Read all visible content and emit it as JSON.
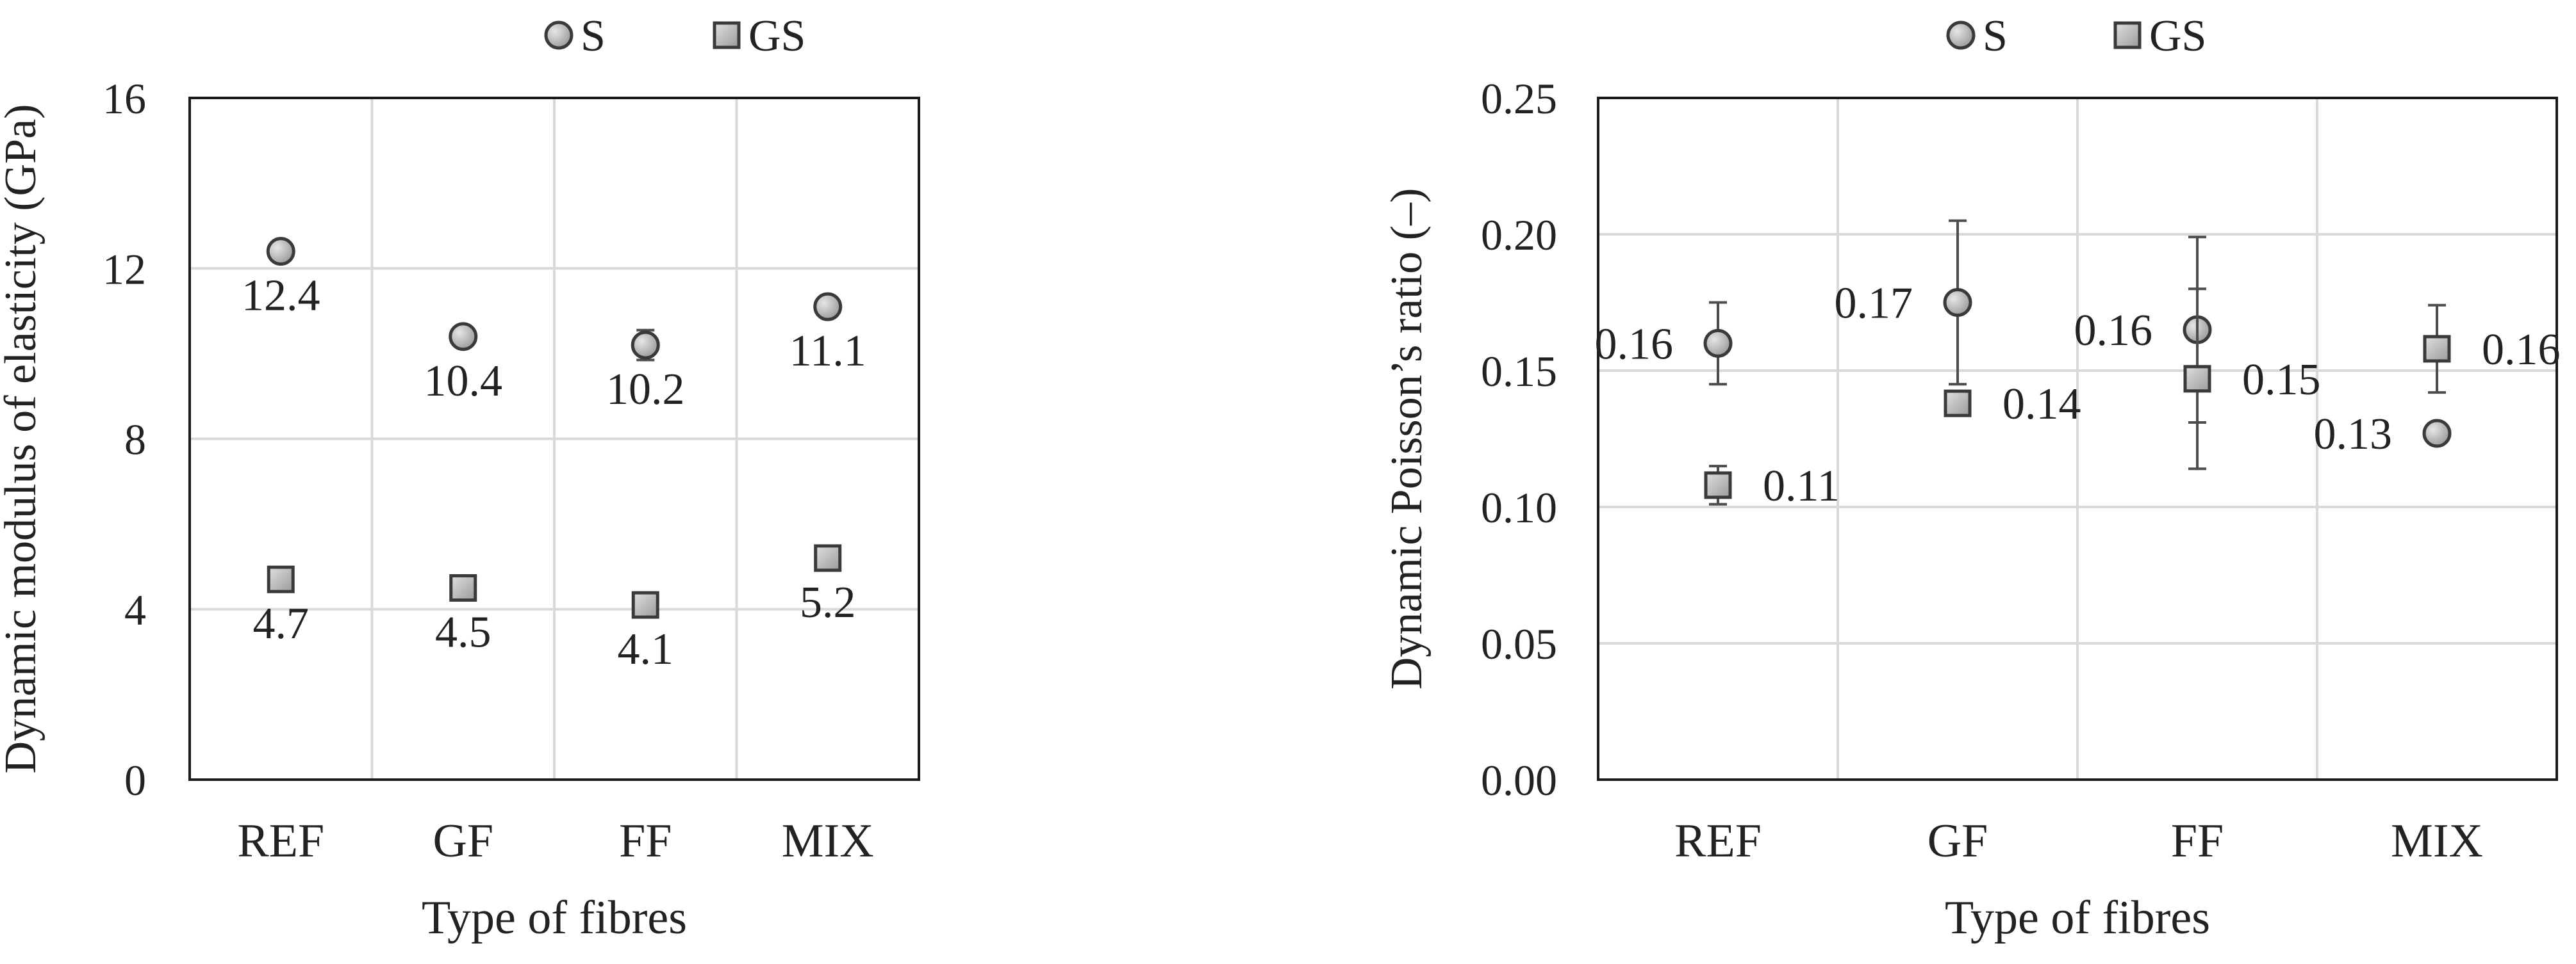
{
  "chart_data": [
    {
      "type": "scatter",
      "title": "",
      "xlabel": "Type of fibres",
      "ylabel": "Dynamic modulus of elasticity (GPa)",
      "categories": [
        "REF",
        "GF",
        "FF",
        "MIX"
      ],
      "ylim": [
        0,
        16
      ],
      "yticks": [
        "0",
        "4",
        "8",
        "12",
        "16"
      ],
      "grid": true,
      "legend": "top-center",
      "series": [
        {
          "name": "S",
          "marker": "circle",
          "values": [
            12.4,
            10.4,
            10.2,
            11.1
          ],
          "errors": [
            0.1,
            0.2,
            0.35,
            0.1
          ],
          "labels": [
            "12.4",
            "10.4",
            "10.2",
            "11.1"
          ],
          "label_position": "below"
        },
        {
          "name": "GS",
          "marker": "square",
          "values": [
            4.7,
            4.5,
            4.1,
            5.2
          ],
          "errors": [
            0.05,
            0.05,
            0.05,
            0.05
          ],
          "labels": [
            "4.7",
            "4.5",
            "4.1",
            "5.2"
          ],
          "label_position": "below"
        }
      ]
    },
    {
      "type": "scatter",
      "title": "",
      "xlabel": "Type of fibres",
      "ylabel": "Dynamic Poisson’s ratio (–)",
      "categories": [
        "REF",
        "GF",
        "FF",
        "MIX"
      ],
      "ylim": [
        0,
        0.25
      ],
      "yticks": [
        "0.00",
        "0.05",
        "0.10",
        "0.15",
        "0.20",
        "0.25"
      ],
      "grid": true,
      "legend": "top-center",
      "series": [
        {
          "name": "S",
          "marker": "circle",
          "values": [
            0.16,
            0.175,
            0.165,
            0.127
          ],
          "errors": [
            0.015,
            0.03,
            0.034,
            0.001
          ],
          "labels": [
            "0.16",
            "0.17",
            "0.16",
            "0.13"
          ],
          "label_position": "left"
        },
        {
          "name": "GS",
          "marker": "square",
          "values": [
            0.108,
            0.138,
            0.147,
            0.158
          ],
          "errors": [
            0.007,
            0.003,
            0.033,
            0.016
          ],
          "labels": [
            "0.11",
            "0.14",
            "0.15",
            "0.16"
          ],
          "label_position": "right"
        }
      ]
    }
  ],
  "colors": {
    "marker_fill": "#b3b3b3",
    "marker_stroke": "#3a3a3a",
    "grid": "#d9d9d9",
    "axis": "#1a1a1a",
    "error_bar": "#4d4d4d"
  }
}
